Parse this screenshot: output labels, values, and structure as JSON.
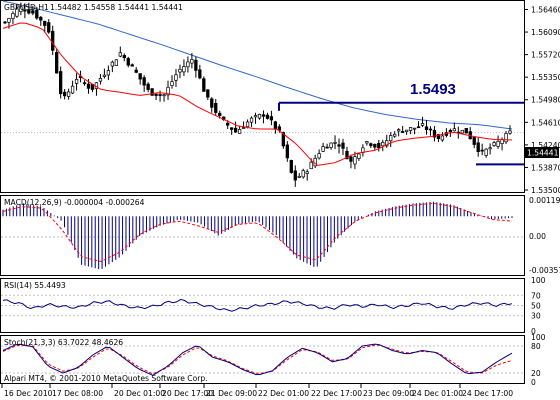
{
  "header": {
    "symbol": "GBPUSD,H1",
    "ohlc": "1.54482 1.54558 1.54441 1.54441"
  },
  "annotation": {
    "level_label": "1.5493"
  },
  "price_axis": [
    "1.56460",
    "1.56090",
    "1.55720",
    "1.55350",
    "1.54980",
    "1.54610",
    "1.54240",
    "1.53870",
    "1.53500"
  ],
  "price_axis_current": "1.54441",
  "macd": {
    "title": "MACD(12,26,9) -0.000004 -0.000264",
    "ticks": [
      "0.001191",
      "0.00",
      "-0.00357"
    ]
  },
  "rsi": {
    "title": "RSI(14) 55.4493",
    "ticks": [
      "100",
      "70",
      "50",
      "30",
      "0"
    ]
  },
  "stoch": {
    "title": "Stoch(21,3,3) 63.7022 48.4626",
    "ticks": [
      "100",
      "80",
      "20",
      "0"
    ]
  },
  "copyright": "Alpari MT4, © 2001-2010 MetaQuotes Software Corp.",
  "time_axis": [
    "16 Dec 2010",
    "17 Dec 08:00",
    "20 Dec 01:00",
    "20 Dec 17:00",
    "21 Dec 09:00",
    "22 Dec 01:00",
    "22 Dec 17:00",
    "23 Dec 09:00",
    "24 Dec 01:00",
    "24 Dec 17:00"
  ],
  "colors": {
    "candle": "#000000",
    "ma_fast": "#ff0000",
    "ma_slow": "#3366cc",
    "level_line": "#000080",
    "macd_hist": "#000080",
    "macd_signal": "#ff0000",
    "rsi": "#000080",
    "stoch_main": "#000080",
    "stoch_signal": "#ff0000"
  },
  "chart_data": {
    "type": "candlestick",
    "x_tick_labels": [
      "16 Dec 2010",
      "17 Dec 08:00",
      "20 Dec 01:00",
      "20 Dec 17:00",
      "21 Dec 09:00",
      "22 Dec 01:00",
      "22 Dec 17:00",
      "23 Dec 09:00",
      "24 Dec 01:00",
      "24 Dec 17:00"
    ],
    "ylim": [
      1.535,
      1.5655
    ],
    "close_anchors": [
      1.5625,
      1.565,
      1.564,
      1.5615,
      1.5495,
      1.5535,
      1.5515,
      1.5545,
      1.5575,
      1.5545,
      1.551,
      1.5505,
      1.5545,
      1.5565,
      1.55,
      1.5465,
      1.5445,
      1.5465,
      1.5475,
      1.5445,
      1.5365,
      1.5385,
      1.542,
      1.543,
      1.5395,
      1.543,
      1.542,
      1.5445,
      1.545,
      1.5455,
      1.5435,
      1.545,
      1.5445,
      1.541,
      1.5425,
      1.5444
    ],
    "ma_fast_anchors": [
      1.5615,
      1.5625,
      1.5615,
      1.557,
      1.5535,
      1.5515,
      1.551,
      1.5505,
      1.551,
      1.5505,
      1.5485,
      1.547,
      1.5455,
      1.545,
      1.545,
      1.5425,
      1.539,
      1.5395,
      1.541,
      1.5415,
      1.543,
      1.5435,
      1.5438,
      1.5445,
      1.5438,
      1.5433,
      1.5432
    ],
    "ma_slow_anchors": [
      1.566,
      1.5648,
      1.5635,
      1.5622,
      1.5605,
      1.5588,
      1.557,
      1.5552,
      1.5535,
      1.5517,
      1.55,
      1.5485,
      1.5474,
      1.5466,
      1.546,
      1.5457,
      1.545
    ],
    "level": 1.5493,
    "support": 1.5392,
    "macd": {
      "ylim": [
        -0.00357,
        0.001191
      ],
      "hist_anchors": [
        0.0004,
        0.0008,
        0.0006,
        -0.0003,
        -0.003,
        -0.0033,
        -0.0025,
        -0.0012,
        -0.0006,
        -0.0002,
        -0.0004,
        -0.0012,
        -0.0005,
        -0.0003,
        -0.0012,
        -0.0026,
        -0.0032,
        -0.0015,
        -0.0003,
        0.0003,
        0.0006,
        0.0008,
        0.0009,
        0.0007,
        0.0002,
        -0.0002,
        -0.0001
      ],
      "signal_anchors": [
        0.0003,
        0.0006,
        0.0005,
        -0.0008,
        -0.0025,
        -0.0028,
        -0.0022,
        -0.0011,
        -0.0005,
        -0.0003,
        -0.0006,
        -0.001,
        -0.0005,
        -0.0004,
        -0.0013,
        -0.0024,
        -0.0027,
        -0.0013,
        -0.0003,
        0.0002,
        0.0005,
        0.0007,
        0.0008,
        0.0006,
        0.0002,
        -0.0002,
        -0.0003
      ]
    },
    "rsi": {
      "ylim": [
        0,
        100
      ],
      "levels": [
        70,
        50,
        30
      ],
      "anchors": [
        60,
        55,
        44,
        52,
        48,
        46,
        55,
        58,
        50,
        45,
        48,
        56,
        60,
        53,
        47,
        40,
        44,
        50,
        53,
        58,
        54,
        47,
        44,
        52,
        48,
        52,
        46,
        50,
        55,
        48,
        44,
        52,
        55,
        50,
        55
      ]
    },
    "stoch": {
      "ylim": [
        0,
        100
      ],
      "levels": [
        80,
        20
      ],
      "main_anchors": [
        70,
        85,
        78,
        35,
        20,
        32,
        60,
        80,
        55,
        30,
        15,
        35,
        65,
        82,
        55,
        45,
        28,
        15,
        25,
        55,
        75,
        65,
        45,
        52,
        80,
        85,
        70,
        62,
        70,
        65,
        40,
        18,
        22,
        45,
        64
      ],
      "signal_anchors": [
        68,
        82,
        80,
        40,
        24,
        30,
        55,
        76,
        58,
        34,
        18,
        32,
        60,
        78,
        58,
        47,
        30,
        18,
        24,
        50,
        72,
        67,
        48,
        50,
        76,
        83,
        73,
        64,
        68,
        66,
        45,
        22,
        20,
        38,
        48
      ]
    }
  }
}
